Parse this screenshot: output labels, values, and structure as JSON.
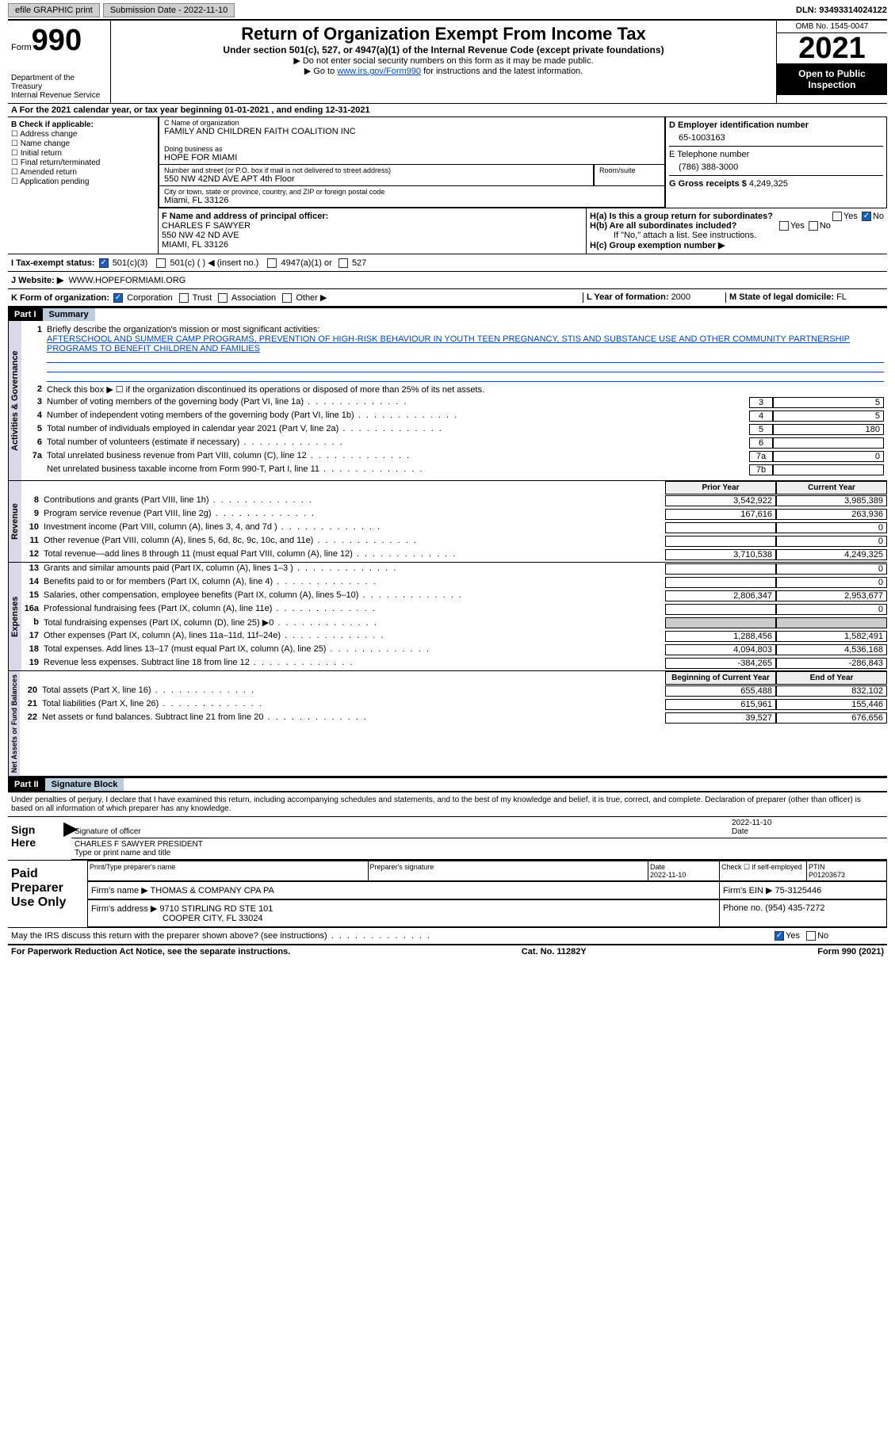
{
  "topbar": {
    "efile": "efile GRAPHIC print",
    "submission": "Submission Date - 2022-11-10",
    "dln": "DLN: 93493314024122"
  },
  "header": {
    "form_prefix": "Form",
    "form_no": "990",
    "dept": "Department of the Treasury",
    "irs": "Internal Revenue Service",
    "title": "Return of Organization Exempt From Income Tax",
    "sub1": "Under section 501(c), 527, or 4947(a)(1) of the Internal Revenue Code (except private foundations)",
    "sub2": "▶ Do not enter social security numbers on this form as it may be made public.",
    "sub3_pre": "▶ Go to ",
    "sub3_link": "www.irs.gov/Form990",
    "sub3_post": " for instructions and the latest information.",
    "omb": "OMB No. 1545-0047",
    "year": "2021",
    "open": "Open to Public Inspection"
  },
  "section_a": "A For the 2021 calendar year, or tax year beginning 01-01-2021   , and ending 12-31-2021",
  "col_b": {
    "title": "B Check if applicable:",
    "items": [
      "Address change",
      "Name change",
      "Initial return",
      "Final return/terminated",
      "Amended return",
      "Application pending"
    ]
  },
  "org": {
    "c_lbl": "C Name of organization",
    "c_val": "FAMILY AND CHILDREN FAITH COALITION INC",
    "dba_lbl": "Doing business as",
    "dba_val": "HOPE FOR MIAMI",
    "street_lbl": "Number and street (or P.O. box if mail is not delivered to street address)",
    "street_val": "550 NW 42ND AVE APT 4th Floor",
    "room_lbl": "Room/suite",
    "city_lbl": "City or town, state or province, country, and ZIP or foreign postal code",
    "city_val": "Miami, FL  33126",
    "f_lbl": "F Name and address of principal officer:",
    "f_name": "CHARLES F SAWYER",
    "f_addr1": "550 NW 42 ND AVE",
    "f_addr2": "MIAMI, FL  33126"
  },
  "col_d": {
    "d_lbl": "D Employer identification number",
    "d_val": "65-1003163",
    "e_lbl": "E Telephone number",
    "e_val": "(786) 388-3000",
    "g_lbl": "G Gross receipts $ ",
    "g_val": "4,249,325",
    "ha": "H(a)  Is this a group return for subordinates?",
    "hb": "H(b)  Are all subordinates included?",
    "hb_note": "If \"No,\" attach a list. See instructions.",
    "hc": "H(c)  Group exemption number ▶",
    "yes": "Yes",
    "no": "No"
  },
  "taxex": {
    "i": "I   Tax-exempt status:",
    "opt1": "501(c)(3)",
    "opt2": "501(c) (  ) ◀ (insert no.)",
    "opt3": "4947(a)(1) or",
    "opt4": "527",
    "j": "J   Website: ▶",
    "j_val": "WWW.HOPEFORMIAMI.ORG",
    "k": "K Form of organization:",
    "k_opts": [
      "Corporation",
      "Trust",
      "Association",
      "Other ▶"
    ],
    "l": "L Year of formation: ",
    "l_val": "2000",
    "m": "M State of legal domicile: ",
    "m_val": "FL"
  },
  "part1": {
    "hdr": "Part I",
    "title": "Summary",
    "side1": "Activities & Governance",
    "side2": "Revenue",
    "side3": "Expenses",
    "side4": "Net Assets or Fund Balances",
    "l1": "Briefly describe the organization's mission or most significant activities:",
    "l1_val": "AFTERSCHOOL AND SUMMER CAMP PROGRAMS, PREVENTION OF HIGH-RISK BEHAVIOUR IN YOUTH TEEN PREGNANCY, STIS AND SUBSTANCE USE AND OTHER COMMUNITY PARTNERSHIP PROGRAMS TO BENEFIT CHILDREN AND FAMILIES",
    "l2": "Check this box ▶ ☐ if the organization discontinued its operations or disposed of more than 25% of its net assets.",
    "lines": [
      {
        "n": "3",
        "t": "Number of voting members of the governing body (Part VI, line 1a)",
        "box": "3",
        "v": "5"
      },
      {
        "n": "4",
        "t": "Number of independent voting members of the governing body (Part VI, line 1b)",
        "box": "4",
        "v": "5"
      },
      {
        "n": "5",
        "t": "Total number of individuals employed in calendar year 2021 (Part V, line 2a)",
        "box": "5",
        "v": "180"
      },
      {
        "n": "6",
        "t": "Total number of volunteers (estimate if necessary)",
        "box": "6",
        "v": ""
      },
      {
        "n": "7a",
        "t": "Total unrelated business revenue from Part VIII, column (C), line 12",
        "box": "7a",
        "v": "0"
      },
      {
        "n": "",
        "t": "Net unrelated business taxable income from Form 990-T, Part I, line 11",
        "box": "7b",
        "v": ""
      }
    ],
    "prior": "Prior Year",
    "current": "Current Year",
    "rev": [
      {
        "n": "8",
        "t": "Contributions and grants (Part VIII, line 1h)",
        "p": "3,542,922",
        "c": "3,985,389"
      },
      {
        "n": "9",
        "t": "Program service revenue (Part VIII, line 2g)",
        "p": "167,616",
        "c": "263,936"
      },
      {
        "n": "10",
        "t": "Investment income (Part VIII, column (A), lines 3, 4, and 7d )",
        "p": "",
        "c": "0"
      },
      {
        "n": "11",
        "t": "Other revenue (Part VIII, column (A), lines 5, 6d, 8c, 9c, 10c, and 11e)",
        "p": "",
        "c": "0"
      },
      {
        "n": "12",
        "t": "Total revenue—add lines 8 through 11 (must equal Part VIII, column (A), line 12)",
        "p": "3,710,538",
        "c": "4,249,325"
      }
    ],
    "exp": [
      {
        "n": "13",
        "t": "Grants and similar amounts paid (Part IX, column (A), lines 1–3 )",
        "p": "",
        "c": "0"
      },
      {
        "n": "14",
        "t": "Benefits paid to or for members (Part IX, column (A), line 4)",
        "p": "",
        "c": "0"
      },
      {
        "n": "15",
        "t": "Salaries, other compensation, employee benefits (Part IX, column (A), lines 5–10)",
        "p": "2,806,347",
        "c": "2,953,677"
      },
      {
        "n": "16a",
        "t": "Professional fundraising fees (Part IX, column (A), line 11e)",
        "p": "",
        "c": "0"
      },
      {
        "n": "b",
        "t": "Total fundraising expenses (Part IX, column (D), line 25) ▶0",
        "p": "grey",
        "c": "grey"
      },
      {
        "n": "17",
        "t": "Other expenses (Part IX, column (A), lines 11a–11d, 11f–24e)",
        "p": "1,288,456",
        "c": "1,582,491"
      },
      {
        "n": "18",
        "t": "Total expenses. Add lines 13–17 (must equal Part IX, column (A), line 25)",
        "p": "4,094,803",
        "c": "4,536,168"
      },
      {
        "n": "19",
        "t": "Revenue less expenses. Subtract line 18 from line 12",
        "p": "-384,265",
        "c": "-286,843"
      }
    ],
    "begin": "Beginning of Current Year",
    "end": "End of Year",
    "net": [
      {
        "n": "20",
        "t": "Total assets (Part X, line 16)",
        "p": "655,488",
        "c": "832,102"
      },
      {
        "n": "21",
        "t": "Total liabilities (Part X, line 26)",
        "p": "615,961",
        "c": "155,446"
      },
      {
        "n": "22",
        "t": "Net assets or fund balances. Subtract line 21 from line 20",
        "p": "39,527",
        "c": "676,656"
      }
    ]
  },
  "part2": {
    "hdr": "Part II",
    "title": "Signature Block",
    "decl": "Under penalties of perjury, I declare that I have examined this return, including accompanying schedules and statements, and to the best of my knowledge and belief, it is true, correct, and complete. Declaration of preparer (other than officer) is based on all information of which preparer has any knowledge.",
    "sign_here": "Sign Here",
    "sig_officer": "Signature of officer",
    "sig_date": "2022-11-10",
    "date_lbl": "Date",
    "officer_name": "CHARLES F SAWYER  PRESIDENT",
    "type_lbl": "Type or print name and title",
    "paid": "Paid Preparer Use Only",
    "prep_name_lbl": "Print/Type preparer's name",
    "prep_sig_lbl": "Preparer's signature",
    "prep_date": "Date\n2022-11-10",
    "prep_check": "Check ☐ if self-employed",
    "ptin_lbl": "PTIN",
    "ptin": "P01203673",
    "firm_name_lbl": "Firm's name    ▶ ",
    "firm_name": "THOMAS & COMPANY CPA PA",
    "firm_ein_lbl": "Firm's EIN ▶ ",
    "firm_ein": "75-3125446",
    "firm_addr_lbl": "Firm's address ▶ ",
    "firm_addr1": "9710 STIRLING RD STE 101",
    "firm_addr2": "COOPER CITY, FL  33024",
    "phone_lbl": "Phone no. ",
    "phone": "(954) 435-7272",
    "discuss": "May the IRS discuss this return with the preparer shown above? (see instructions)",
    "yes": "Yes",
    "no": "No"
  },
  "footer": {
    "left": "For Paperwork Reduction Act Notice, see the separate instructions.",
    "mid": "Cat. No. 11282Y",
    "right": "Form 990 (2021)"
  }
}
